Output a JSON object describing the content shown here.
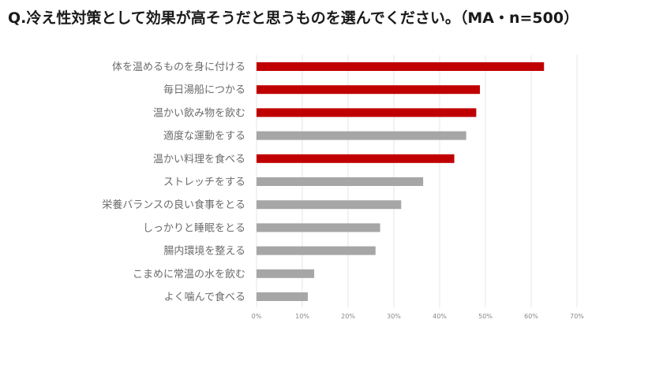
{
  "chart_data": {
    "type": "bar",
    "orientation": "horizontal",
    "title": "Q.冷え性対策として効果が高そうだと思うものを選んでください。（MA・n=500）",
    "categories": [
      "体を温めるものを身に付ける",
      "毎日湯船につかる",
      "温かい飲み物を飲む",
      "適度な運動をする",
      "温かい料理を食べる",
      "ストレッチをする",
      "栄養バランスの良い食事をとる",
      "しっかりと睡眠をとる",
      "腸内環境を整える",
      "こまめに常温の水を飲む",
      "よく噛んで食べる"
    ],
    "values": [
      62.8,
      48.8,
      48.0,
      45.8,
      43.2,
      36.4,
      31.6,
      27.0,
      26.0,
      12.6,
      11.2
    ],
    "highlighted": [
      true,
      true,
      true,
      false,
      true,
      false,
      false,
      false,
      false,
      false,
      false
    ],
    "xlim": [
      0,
      70
    ],
    "xticks": [
      "0%",
      "10%",
      "20%",
      "30%",
      "40%",
      "50%",
      "60%",
      "70%"
    ],
    "grid": true,
    "colors": {
      "highlight": "#c00000",
      "default": "#a6a6a6"
    }
  }
}
